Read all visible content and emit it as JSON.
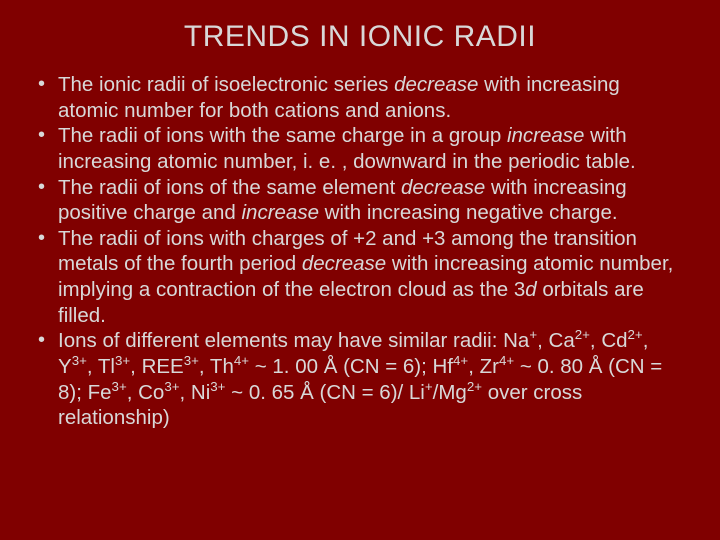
{
  "background_color": "#800000",
  "text_color": "#d8d8d8",
  "title_fontsize": 30,
  "body_fontsize": 20.5,
  "title": "TRENDS IN IONIC RADII",
  "bullets": [
    {
      "html": "The ionic radii of isoelectronic series <span class=\"italic\">decrease</span> with increasing atomic number for both cations and anions."
    },
    {
      "html": "The radii of ions with the same charge in a group <span class=\"italic\">increase</span> with increasing atomic number, i. e. , downward in the periodic table."
    },
    {
      "html": "The radii of ions of the same element <span class=\"italic\">decrease</span> with increasing positive charge and <span class=\"italic\">increase</span> with increasing negative charge."
    },
    {
      "html": "The radii of ions with charges of +2 and +3 among the transition metals of the fourth period <span class=\"italic\">decrease</span> with increasing atomic number, implying a contraction of the electron cloud as the 3<span class=\"italic\">d</span> orbitals are filled."
    },
    {
      "html": "Ions of different elements may have similar radii: Na<sup>+</sup>, Ca<sup>2+</sup>, Cd<sup>2+</sup>, Y<sup>3+</sup>, Tl<sup>3+</sup>, REE<sup>3+</sup>, Th<sup>4+</sup> ~ 1. 00 Å (CN = 6); Hf<sup>4+</sup>, Zr<sup>4+</sup> ~ 0. 80 Å (CN = 8); Fe<sup>3+</sup>, Co<sup>3+</sup>, Ni<sup>3+</sup> ~ 0. 65 Å (CN = 6)/ Li<sup>+</sup>/Mg<sup>2+</sup> over cross relationship)"
    }
  ]
}
